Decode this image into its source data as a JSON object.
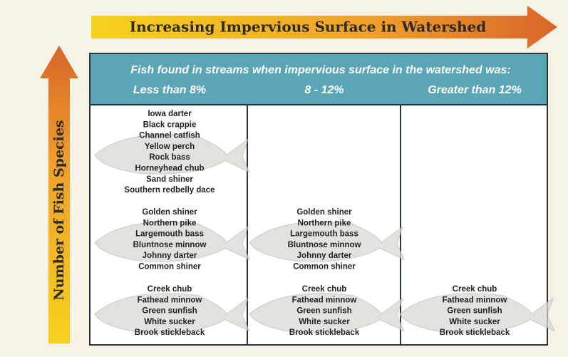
{
  "x_arrow": "Increasing Impervious Surface in Watershed",
  "y_arrow": "Number of Fish Species",
  "table": {
    "caption": "Fish found in streams when impervious surface in the watershed was:",
    "columns": [
      {
        "label": "Less than 8%",
        "groups": [
          [
            "Iowa darter",
            "Black crappie",
            "Channel catfish",
            "Yellow perch",
            "Rock bass",
            "Horneyhead chub",
            "Sand shiner",
            "Southern redbelly dace"
          ],
          [
            "Golden shiner",
            "Northern pike",
            "Largemouth bass",
            "Bluntnose minnow",
            "Johnny darter",
            "Common shiner"
          ],
          [
            "Creek chub",
            "Fathead minnow",
            "Green sunfish",
            "White sucker",
            "Brook stickleback"
          ]
        ]
      },
      {
        "label": "8 - 12%",
        "groups": [
          [
            "Golden shiner",
            "Northern pike",
            "Largemouth bass",
            "Bluntnose minnow",
            "Johnny darter",
            "Common shiner"
          ],
          [
            "Creek chub",
            "Fathead minnow",
            "Green sunfish",
            "White sucker",
            "Brook stickleback"
          ]
        ]
      },
      {
        "label": "Greater than 12%",
        "groups": [
          [
            "Creek chub",
            "Fathead minnow",
            "Green sunfish",
            "White sucker",
            "Brook stickleback"
          ]
        ]
      }
    ]
  }
}
